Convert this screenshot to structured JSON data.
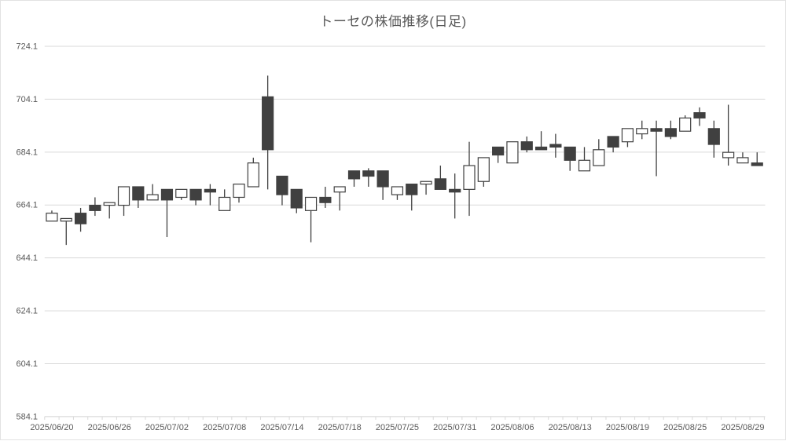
{
  "chart_data": {
    "type": "candlestick",
    "title": "トーセの株価推移(日足)",
    "xlabel": "",
    "ylabel": "",
    "ylim": [
      584.1,
      724.1
    ],
    "y_ticks": [
      724.1,
      704.1,
      684.1,
      664.1,
      644.1,
      624.1,
      604.1,
      584.1
    ],
    "grid": true,
    "legend": "none",
    "x_axis_labels": [
      "2025/06/20",
      "2025/06/26",
      "2025/07/02",
      "2025/07/08",
      "2025/07/14",
      "2025/07/18",
      "2025/07/25",
      "2025/07/31",
      "2025/08/06",
      "2025/08/13",
      "2025/08/19",
      "2025/08/25",
      "2025/08/29"
    ],
    "x_label_every": 4,
    "columns": [
      "date",
      "open",
      "high",
      "low",
      "close"
    ],
    "candles": [
      [
        "2025/06/20",
        658,
        662,
        658,
        661
      ],
      [
        "2025/06/23",
        658,
        659,
        649,
        659
      ],
      [
        "2025/06/24",
        661,
        663,
        654,
        657
      ],
      [
        "2025/06/25",
        664,
        667,
        660,
        662
      ],
      [
        "2025/06/26",
        664,
        665,
        659,
        665
      ],
      [
        "2025/06/27",
        664,
        671,
        660,
        671
      ],
      [
        "2025/06/30",
        671,
        671,
        663,
        666
      ],
      [
        "2025/07/01",
        666,
        672,
        666,
        668
      ],
      [
        "2025/07/02",
        670,
        670,
        652,
        666
      ],
      [
        "2025/07/03",
        667,
        670,
        666,
        670
      ],
      [
        "2025/07/04",
        670,
        670,
        664,
        666
      ],
      [
        "2025/07/07",
        670,
        672,
        664,
        669
      ],
      [
        "2025/07/08",
        662,
        670,
        662,
        667
      ],
      [
        "2025/07/09",
        667,
        672,
        665,
        672
      ],
      [
        "2025/07/10",
        671,
        682,
        671,
        680
      ],
      [
        "2025/07/11",
        705,
        713,
        670,
        685
      ],
      [
        "2025/07/14",
        675,
        675,
        664,
        668
      ],
      [
        "2025/07/15",
        670,
        670,
        661,
        663
      ],
      [
        "2025/07/16",
        662,
        667,
        650,
        667
      ],
      [
        "2025/07/17",
        667,
        671,
        663,
        665
      ],
      [
        "2025/07/18",
        669,
        671,
        662,
        671
      ],
      [
        "2025/07/22",
        677,
        677,
        671,
        674
      ],
      [
        "2025/07/23",
        677,
        678,
        671,
        675
      ],
      [
        "2025/07/24",
        677,
        677,
        666,
        671
      ],
      [
        "2025/07/25",
        668,
        671,
        666,
        671
      ],
      [
        "2025/07/28",
        672,
        672,
        662,
        668
      ],
      [
        "2025/07/29",
        672,
        673,
        668,
        673
      ],
      [
        "2025/07/30",
        674,
        679,
        670,
        670
      ],
      [
        "2025/07/31",
        670,
        676,
        659,
        669
      ],
      [
        "2025/08/01",
        670,
        688,
        660,
        679
      ],
      [
        "2025/08/04",
        673,
        682,
        671,
        682
      ],
      [
        "2025/08/05",
        686,
        686,
        680,
        683
      ],
      [
        "2025/08/06",
        680,
        688,
        680,
        688
      ],
      [
        "2025/08/07",
        688,
        690,
        684,
        685
      ],
      [
        "2025/08/08",
        686,
        692,
        685,
        685
      ],
      [
        "2025/08/12",
        687,
        691,
        682,
        686
      ],
      [
        "2025/08/13",
        686,
        686,
        677,
        681
      ],
      [
        "2025/08/14",
        677,
        686,
        677,
        681
      ],
      [
        "2025/08/15",
        679,
        689,
        679,
        685
      ],
      [
        "2025/08/18",
        690,
        690,
        684,
        686
      ],
      [
        "2025/08/19",
        688,
        693,
        686,
        693
      ],
      [
        "2025/08/20",
        691,
        696,
        689,
        693
      ],
      [
        "2025/08/21",
        693,
        696,
        675,
        692
      ],
      [
        "2025/08/22",
        693,
        696,
        689,
        690
      ],
      [
        "2025/08/25",
        692,
        698,
        692,
        697
      ],
      [
        "2025/08/26",
        699,
        701,
        694,
        697
      ],
      [
        "2025/08/27",
        693,
        696,
        682,
        687
      ],
      [
        "2025/08/28",
        682,
        702,
        679,
        684
      ],
      [
        "2025/08/29",
        680,
        684,
        680,
        682
      ],
      [
        "2025/09/01",
        680,
        684,
        679,
        679
      ]
    ],
    "colors": {
      "up_fill": "#ffffff",
      "down_fill": "#404040",
      "candle_stroke": "#404040",
      "gridline": "#d9d9d9",
      "axis_line": "#d9d9d9",
      "axis_text": "#595959",
      "title_text": "#595959",
      "background": "#ffffff",
      "frame_border": "#e2e2e2"
    }
  }
}
